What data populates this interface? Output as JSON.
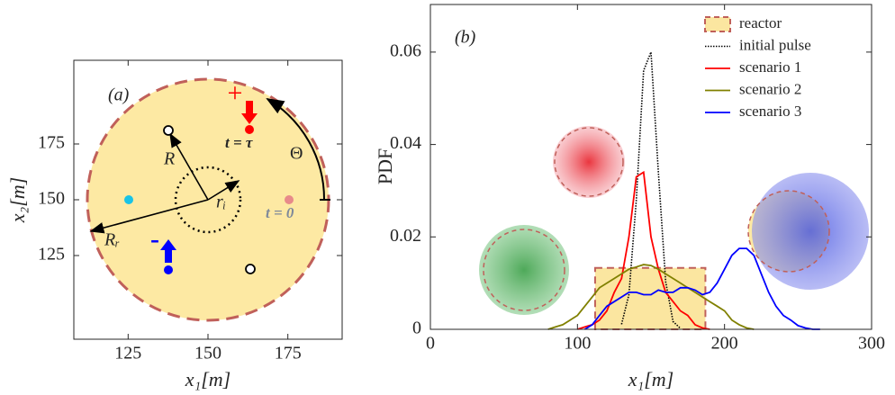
{
  "chart_data": [
    {
      "type": "diagram",
      "xlabel": "x₁[m]",
      "ylabel": "x₂[m]",
      "xlim": [
        108,
        192
      ],
      "ylim": [
        87.5,
        212.5
      ],
      "xticks": [
        125,
        150,
        175
      ],
      "yticks": [
        125,
        150,
        175
      ],
      "annotations": {
        "panel": "(a)",
        "R": "R",
        "r_i": "rᵢ",
        "R_r": "Rᵣ",
        "theta": "Θ",
        "t_tau": "t = τ",
        "t_zero": "t = 0",
        "minus": "-",
        "plus": "+"
      }
    },
    {
      "type": "line",
      "xlabel": "x₁[m]",
      "ylabel": "PDF",
      "panel": "(b)",
      "legend": "upper right",
      "xlim": [
        0,
        300
      ],
      "ylim": [
        0,
        0.0703
      ],
      "xticks": [
        0,
        100,
        200,
        300
      ],
      "yticks": [
        0,
        0.02,
        0.04,
        0.06
      ],
      "reactor": {
        "name": "reactor",
        "x": [
          112,
          187
        ],
        "value": 0.0133,
        "color": "#fbe6a0"
      },
      "x": [
        80,
        85,
        90,
        95,
        100,
        105,
        110,
        115,
        120,
        125,
        130,
        135,
        140,
        145,
        150,
        155,
        160,
        165,
        170,
        175,
        180,
        185,
        190,
        195,
        200,
        205,
        210,
        215,
        220,
        225,
        230,
        235,
        240,
        245,
        250,
        255,
        260,
        265
      ],
      "series": [
        {
          "name": "initial pulse",
          "color": "#000000",
          "dash": "dotted",
          "values": [
            null,
            null,
            null,
            null,
            null,
            null,
            null,
            null,
            null,
            null,
            0.0011,
            0.0075,
            0.028,
            0.056,
            0.06,
            0.034,
            0.0103,
            0.0017,
            0.0002,
            null,
            null,
            null,
            null,
            null,
            null,
            null,
            null,
            null,
            null,
            null,
            null,
            null,
            null,
            null,
            null,
            null,
            null,
            null
          ]
        },
        {
          "name": "scenario 1",
          "color": "#ff0000",
          "values": [
            null,
            null,
            null,
            null,
            0,
            0.0005,
            0.001,
            0.002,
            0.004,
            0.008,
            0.011,
            0.02,
            0.033,
            0.034,
            0.02,
            0.013,
            0.008,
            0.006,
            0.004,
            0.003,
            0.001,
            0.0003,
            0,
            null,
            null,
            null,
            null,
            null,
            null,
            null,
            null,
            null,
            null,
            null,
            null,
            null,
            null,
            null
          ]
        },
        {
          "name": "scenario 2",
          "color": "#808000",
          "values": [
            0,
            0.0005,
            0.001,
            0.002,
            0.003,
            0.005,
            0.007,
            0.009,
            0.01,
            0.011,
            0.012,
            0.013,
            0.0135,
            0.014,
            0.0138,
            0.013,
            0.012,
            0.011,
            0.01,
            0.009,
            0.008,
            0.007,
            0.006,
            0.005,
            0.004,
            0.002,
            0.001,
            0.0003,
            0,
            null,
            null,
            null,
            null,
            null,
            null,
            null,
            null,
            null
          ]
        },
        {
          "name": "scenario 3",
          "color": "#0000ff",
          "values": [
            null,
            null,
            null,
            null,
            null,
            0,
            0.001,
            0.003,
            0.005,
            0.006,
            0.007,
            0.008,
            0.008,
            0.0075,
            0.0075,
            0.0085,
            0.008,
            0.008,
            0.009,
            0.009,
            0.0085,
            0.0075,
            0.008,
            0.01,
            0.013,
            0.016,
            0.0175,
            0.0175,
            0.016,
            0.012,
            0.008,
            0.005,
            0.003,
            0.002,
            0.0008,
            0.0003,
            0,
            0
          ]
        }
      ]
    }
  ]
}
